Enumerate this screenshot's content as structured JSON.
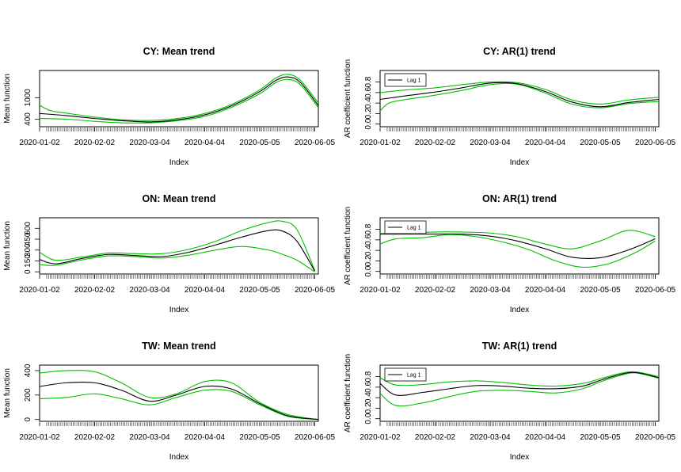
{
  "colors": {
    "estimate": "#000000",
    "band": "#00c000",
    "frame": "#000000"
  },
  "chart_data": [
    {
      "id": "cy-mean",
      "type": "line",
      "title": "CY: Mean trend",
      "xlabel": "Index",
      "ylabel": "Mean function",
      "x_tick_labels": [
        "2020-01-02",
        "2020-02-02",
        "2020-03-04",
        "2020-04-04",
        "2020-05-05",
        "2020-06-05"
      ],
      "x_tick_positions": [
        1,
        32,
        63,
        94,
        125,
        156
      ],
      "xlim": [
        1,
        158
      ],
      "y_ticks": [
        400,
        1000
      ],
      "y_tick_labels": [
        "400",
        "1000"
      ],
      "ylim": [
        190,
        1760
      ],
      "legend": null,
      "series": [
        {
          "name": "estimate",
          "role": "estimate",
          "x": [
            1,
            16,
            32,
            47,
            63,
            78,
            94,
            109,
            125,
            134,
            141,
            148,
            158
          ],
          "values": [
            560,
            500,
            420,
            360,
            325,
            380,
            520,
            770,
            1170,
            1480,
            1580,
            1420,
            780
          ]
        },
        {
          "name": "upper band",
          "role": "band",
          "x": [
            1,
            7,
            16,
            32,
            47,
            63,
            78,
            94,
            109,
            125,
            134,
            141,
            148,
            158
          ],
          "values": [
            790,
            640,
            570,
            460,
            385,
            365,
            415,
            560,
            810,
            1220,
            1550,
            1650,
            1480,
            850
          ]
        },
        {
          "name": "lower band",
          "role": "band",
          "x": [
            1,
            16,
            32,
            47,
            63,
            78,
            94,
            109,
            125,
            134,
            141,
            148,
            158
          ],
          "values": [
            420,
            400,
            340,
            300,
            300,
            355,
            480,
            730,
            1110,
            1420,
            1510,
            1360,
            720
          ]
        }
      ]
    },
    {
      "id": "cy-ar",
      "type": "line",
      "title": "CY: AR(1) trend",
      "xlabel": "Index",
      "ylabel": "AR coefficient function",
      "x_tick_labels": [
        "2020-01-02",
        "2020-02-02",
        "2020-03-04",
        "2020-04-04",
        "2020-05-05",
        "2020-06-05"
      ],
      "x_tick_positions": [
        1,
        32,
        63,
        94,
        125,
        156
      ],
      "xlim": [
        1,
        158
      ],
      "y_ticks": [
        0.0,
        0.2,
        0.4,
        0.6,
        0.8
      ],
      "y_tick_labels": [
        "0.0",
        "0.2",
        "0.4",
        "0.6",
        "0.8"
      ],
      "ylim": [
        -0.05,
        1.02
      ],
      "legend": {
        "label": "Lag 1",
        "position": "top-left"
      },
      "series": [
        {
          "name": "Lag 1",
          "role": "estimate",
          "x": [
            1,
            16,
            32,
            47,
            63,
            78,
            94,
            109,
            125,
            141,
            158
          ],
          "values": [
            0.47,
            0.54,
            0.61,
            0.69,
            0.78,
            0.77,
            0.62,
            0.42,
            0.33,
            0.41,
            0.47
          ]
        },
        {
          "name": "upper band",
          "role": "band",
          "x": [
            1,
            16,
            32,
            47,
            63,
            78,
            94,
            109,
            125,
            141,
            158
          ],
          "values": [
            0.6,
            0.65,
            0.69,
            0.75,
            0.8,
            0.79,
            0.66,
            0.46,
            0.38,
            0.46,
            0.51
          ]
        },
        {
          "name": "lower band",
          "role": "band",
          "x": [
            1,
            6,
            16,
            32,
            47,
            63,
            78,
            94,
            109,
            125,
            141,
            158
          ],
          "values": [
            0.25,
            0.4,
            0.47,
            0.55,
            0.64,
            0.75,
            0.76,
            0.59,
            0.38,
            0.31,
            0.39,
            0.43
          ]
        }
      ]
    },
    {
      "id": "on-mean",
      "type": "line",
      "title": "ON: Mean trend",
      "xlabel": "Index",
      "ylabel": "Mean function",
      "x_tick_labels": [
        "2020-01-02",
        "2020-02-02",
        "2020-03-04",
        "2020-04-04",
        "2020-05-05",
        "2020-06-05"
      ],
      "x_tick_positions": [
        1,
        32,
        63,
        94,
        125,
        156
      ],
      "xlim": [
        1,
        158
      ],
      "y_ticks": [
        0,
        150,
        300,
        450,
        600
      ],
      "y_tick_labels": [
        "0",
        "150",
        "300",
        "450",
        "600"
      ],
      "ylim": [
        -30,
        745
      ],
      "legend": null,
      "series": [
        {
          "name": "estimate",
          "role": "estimate",
          "x": [
            1,
            10,
            25,
            40,
            55,
            70,
            85,
            100,
            115,
            130,
            138,
            146,
            156
          ],
          "values": [
            170,
            110,
            185,
            240,
            225,
            210,
            270,
            370,
            480,
            570,
            560,
            420,
            10
          ]
        },
        {
          "name": "upper band",
          "role": "band",
          "x": [
            1,
            10,
            25,
            40,
            55,
            70,
            85,
            100,
            115,
            130,
            138,
            146,
            156
          ],
          "values": [
            270,
            160,
            205,
            260,
            250,
            250,
            310,
            420,
            570,
            680,
            695,
            580,
            20
          ]
        },
        {
          "name": "lower band",
          "role": "band",
          "x": [
            1,
            10,
            25,
            40,
            55,
            70,
            85,
            100,
            115,
            130,
            138,
            146,
            156
          ],
          "values": [
            100,
            90,
            165,
            220,
            210,
            190,
            230,
            300,
            350,
            300,
            240,
            160,
            0
          ]
        }
      ]
    },
    {
      "id": "on-ar",
      "type": "line",
      "title": "ON: AR(1) trend",
      "xlabel": "Index",
      "ylabel": "AR coefficient function",
      "x_tick_labels": [
        "2020-01-02",
        "2020-02-02",
        "2020-03-04",
        "2020-04-04",
        "2020-05-05",
        "2020-06-05"
      ],
      "x_tick_positions": [
        1,
        32,
        63,
        94,
        125,
        156
      ],
      "xlim": [
        1,
        158
      ],
      "y_ticks": [
        0.0,
        0.2,
        0.4,
        0.6,
        0.8
      ],
      "y_tick_labels": [
        "0.0",
        "0.2",
        "0.4",
        "0.6",
        "0.8"
      ],
      "ylim": [
        -0.05,
        1.02
      ],
      "legend": {
        "label": "Lag 1",
        "position": "top-left"
      },
      "series": [
        {
          "name": "Lag 1",
          "role": "estimate",
          "x": [
            1,
            16,
            32,
            47,
            63,
            78,
            94,
            109,
            125,
            141,
            156
          ],
          "values": [
            0.71,
            0.71,
            0.71,
            0.71,
            0.67,
            0.58,
            0.43,
            0.27,
            0.26,
            0.41,
            0.62
          ]
        },
        {
          "name": "upper band",
          "role": "band",
          "x": [
            1,
            16,
            32,
            47,
            63,
            78,
            94,
            109,
            125,
            141,
            156
          ],
          "values": [
            0.72,
            0.73,
            0.75,
            0.75,
            0.73,
            0.66,
            0.52,
            0.43,
            0.58,
            0.78,
            0.66
          ]
        },
        {
          "name": "lower band",
          "role": "band",
          "x": [
            1,
            10,
            25,
            40,
            55,
            70,
            85,
            100,
            115,
            130,
            145,
            156
          ],
          "values": [
            0.52,
            0.62,
            0.64,
            0.7,
            0.66,
            0.56,
            0.41,
            0.2,
            0.08,
            0.15,
            0.36,
            0.58
          ]
        }
      ]
    },
    {
      "id": "tw-mean",
      "type": "line",
      "title": "TW: Mean trend",
      "xlabel": "Index",
      "ylabel": "Mean function",
      "x_tick_labels": [
        "2020-01-02",
        "2020-02-02",
        "2020-03-04",
        "2020-04-04",
        "2020-05-05",
        "2020-06-05"
      ],
      "x_tick_positions": [
        1,
        32,
        63,
        94,
        125,
        156
      ],
      "xlim": [
        1,
        158
      ],
      "y_ticks": [
        0,
        200,
        400
      ],
      "y_tick_labels": [
        "0",
        "200",
        "400"
      ],
      "ylim": [
        -15,
        445
      ],
      "legend": null,
      "series": [
        {
          "name": "estimate",
          "role": "estimate",
          "x": [
            1,
            16,
            32,
            47,
            63,
            78,
            94,
            109,
            125,
            141,
            158
          ],
          "values": [
            270,
            300,
            300,
            240,
            150,
            200,
            270,
            250,
            130,
            30,
            0
          ]
        },
        {
          "name": "upper band",
          "role": "band",
          "x": [
            1,
            16,
            32,
            47,
            63,
            78,
            94,
            109,
            125,
            141,
            158
          ],
          "values": [
            380,
            400,
            390,
            300,
            180,
            210,
            310,
            300,
            140,
            40,
            0
          ]
        },
        {
          "name": "lower band",
          "role": "band",
          "x": [
            1,
            16,
            32,
            47,
            63,
            78,
            94,
            109,
            125,
            141,
            158
          ],
          "values": [
            170,
            180,
            210,
            170,
            120,
            180,
            240,
            230,
            120,
            25,
            0
          ]
        }
      ]
    },
    {
      "id": "tw-ar",
      "type": "line",
      "title": "TW: AR(1) trend",
      "xlabel": "Index",
      "ylabel": "AR coefficient function",
      "x_tick_labels": [
        "2020-01-02",
        "2020-02-02",
        "2020-03-04",
        "2020-04-04",
        "2020-05-05",
        "2020-06-05"
      ],
      "x_tick_positions": [
        1,
        32,
        63,
        94,
        125,
        156
      ],
      "xlim": [
        1,
        158
      ],
      "y_ticks": [
        0.0,
        0.2,
        0.4,
        0.6,
        0.8
      ],
      "y_tick_labels": [
        "0.0",
        "0.2",
        "0.4",
        "0.6",
        "0.8"
      ],
      "ylim": [
        -0.05,
        1.02
      ],
      "legend": {
        "label": "Lag 1",
        "position": "top-left"
      },
      "series": [
        {
          "name": "Lag 1",
          "role": "estimate",
          "x": [
            1,
            10,
            25,
            40,
            55,
            70,
            85,
            100,
            115,
            125,
            136,
            145,
            158
          ],
          "values": [
            0.67,
            0.45,
            0.5,
            0.57,
            0.63,
            0.62,
            0.58,
            0.57,
            0.62,
            0.73,
            0.84,
            0.88,
            0.78
          ]
        },
        {
          "name": "upper band",
          "role": "band",
          "x": [
            1,
            10,
            25,
            40,
            55,
            70,
            85,
            100,
            115,
            125,
            136,
            145,
            158
          ],
          "values": [
            0.78,
            0.64,
            0.65,
            0.7,
            0.72,
            0.69,
            0.64,
            0.62,
            0.67,
            0.76,
            0.86,
            0.89,
            0.8
          ]
        },
        {
          "name": "lower band",
          "role": "band",
          "x": [
            1,
            10,
            25,
            40,
            55,
            70,
            85,
            100,
            115,
            125,
            136,
            145,
            158
          ],
          "values": [
            0.48,
            0.25,
            0.3,
            0.42,
            0.52,
            0.54,
            0.52,
            0.49,
            0.57,
            0.7,
            0.82,
            0.87,
            0.77
          ]
        }
      ]
    }
  ]
}
